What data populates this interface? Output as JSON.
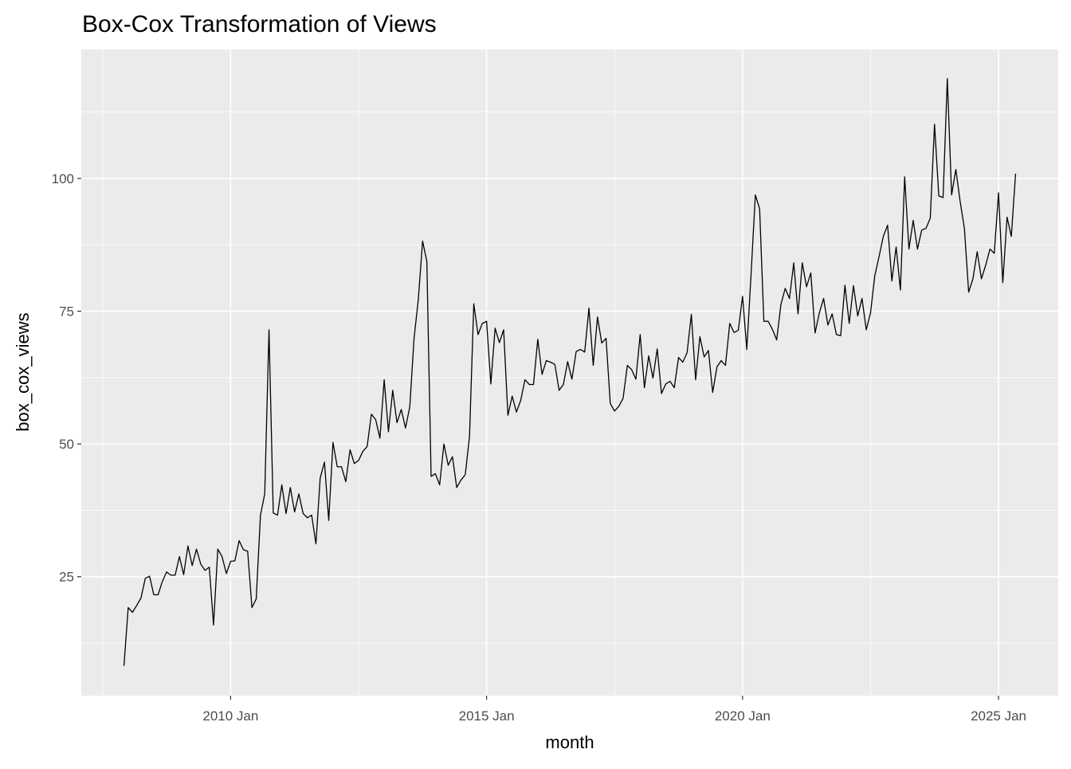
{
  "chart_data": {
    "type": "line",
    "title": "Box-Cox Transformation of Views",
    "xlabel": "month",
    "ylabel": "box_cox_views",
    "color": "#000000",
    "grid": true,
    "x": [
      "2007 Dec",
      "2008 Jan",
      "2008 Feb",
      "2008 Mar",
      "2008 Apr",
      "2008 May",
      "2008 Jun",
      "2008 Jul",
      "2008 Aug",
      "2008 Sep",
      "2008 Oct",
      "2008 Nov",
      "2008 Dec",
      "2009 Jan",
      "2009 Feb",
      "2009 Mar",
      "2009 Apr",
      "2009 May",
      "2009 Jun",
      "2009 Jul",
      "2009 Aug",
      "2009 Sep",
      "2009 Oct",
      "2009 Nov",
      "2009 Dec",
      "2010 Jan",
      "2010 Feb",
      "2010 Mar",
      "2010 Apr",
      "2010 May",
      "2010 Jun",
      "2010 Jul",
      "2010 Aug",
      "2010 Sep",
      "2010 Oct",
      "2010 Nov",
      "2010 Dec",
      "2011 Jan",
      "2011 Feb",
      "2011 Mar",
      "2011 Apr",
      "2011 May",
      "2011 Jun",
      "2011 Jul",
      "2011 Aug",
      "2011 Sep",
      "2011 Oct",
      "2011 Nov",
      "2011 Dec",
      "2012 Jan",
      "2012 Feb",
      "2012 Mar",
      "2012 Apr",
      "2012 May",
      "2012 Jun",
      "2012 Jul",
      "2012 Aug",
      "2012 Sep",
      "2012 Oct",
      "2012 Nov",
      "2012 Dec",
      "2013 Jan",
      "2013 Feb",
      "2013 Mar",
      "2013 Apr",
      "2013 May",
      "2013 Jun",
      "2013 Jul",
      "2013 Aug",
      "2013 Sep",
      "2013 Oct",
      "2013 Nov",
      "2013 Dec",
      "2014 Jan",
      "2014 Feb",
      "2014 Mar",
      "2014 Apr",
      "2014 May",
      "2014 Jun",
      "2014 Jul",
      "2014 Aug",
      "2014 Sep",
      "2014 Oct",
      "2014 Nov",
      "2014 Dec",
      "2015 Jan",
      "2015 Feb",
      "2015 Mar",
      "2015 Apr",
      "2015 May",
      "2015 Jun",
      "2015 Jul",
      "2015 Aug",
      "2015 Sep",
      "2015 Oct",
      "2015 Nov",
      "2015 Dec",
      "2016 Jan",
      "2016 Feb",
      "2016 Mar",
      "2016 Apr",
      "2016 May",
      "2016 Jun",
      "2016 Jul",
      "2016 Aug",
      "2016 Sep",
      "2016 Oct",
      "2016 Nov",
      "2016 Dec",
      "2017 Jan",
      "2017 Feb",
      "2017 Mar",
      "2017 Apr",
      "2017 May",
      "2017 Jun",
      "2017 Jul",
      "2017 Aug",
      "2017 Sep",
      "2017 Oct",
      "2017 Nov",
      "2017 Dec",
      "2018 Jan",
      "2018 Feb",
      "2018 Mar",
      "2018 Apr",
      "2018 May",
      "2018 Jun",
      "2018 Jul",
      "2018 Aug",
      "2018 Sep",
      "2018 Oct",
      "2018 Nov",
      "2018 Dec",
      "2019 Jan",
      "2019 Feb",
      "2019 Mar",
      "2019 Apr",
      "2019 May",
      "2019 Jun",
      "2019 Jul",
      "2019 Aug",
      "2019 Sep",
      "2019 Oct",
      "2019 Nov",
      "2019 Dec",
      "2020 Jan",
      "2020 Feb",
      "2020 Mar",
      "2020 Apr",
      "2020 May",
      "2020 Jun",
      "2020 Jul",
      "2020 Aug",
      "2020 Sep",
      "2020 Oct",
      "2020 Nov",
      "2020 Dec",
      "2021 Jan",
      "2021 Feb",
      "2021 Mar",
      "2021 Apr",
      "2021 May",
      "2021 Jun",
      "2021 Jul",
      "2021 Aug",
      "2021 Sep",
      "2021 Oct",
      "2021 Nov",
      "2021 Dec",
      "2022 Jan",
      "2022 Feb",
      "2022 Mar",
      "2022 Apr",
      "2022 May",
      "2022 Jun",
      "2022 Jul",
      "2022 Aug",
      "2022 Sep",
      "2022 Oct",
      "2022 Nov",
      "2022 Dec",
      "2023 Jan",
      "2023 Feb",
      "2023 Mar",
      "2023 Apr",
      "2023 May",
      "2023 Jun",
      "2023 Jul",
      "2023 Aug",
      "2023 Sep",
      "2023 Oct",
      "2023 Nov",
      "2023 Dec",
      "2024 Jan",
      "2024 Feb",
      "2024 Mar",
      "2024 Apr",
      "2024 May",
      "2024 Jun",
      "2024 Jul",
      "2024 Aug",
      "2024 Sep",
      "2024 Oct",
      "2024 Nov",
      "2024 Dec",
      "2025 Jan",
      "2025 Feb",
      "2025 Mar",
      "2025 Apr",
      "2025 May"
    ],
    "values": [
      8.2,
      19.2,
      18.3,
      19.6,
      21,
      24.7,
      25.1,
      21.6,
      21.6,
      24.1,
      25.9,
      25.3,
      25.3,
      28.8,
      25.4,
      30.8,
      27.1,
      30.2,
      27.4,
      26.2,
      26.8,
      15.9,
      30.2,
      28.8,
      25.6,
      27.9,
      28,
      31.8,
      30.1,
      29.8,
      19.2,
      20.8,
      36.6,
      40.6,
      71.5,
      37,
      36.6,
      42.3,
      36.9,
      41.8,
      37.2,
      40.6,
      36.9,
      36.1,
      36.6,
      31.2,
      43.6,
      46.6,
      35.6,
      50.3,
      45.7,
      45.7,
      42.9,
      48.9,
      46.3,
      46.9,
      48.6,
      49.5,
      55.6,
      54.6,
      51.1,
      62.1,
      52.3,
      60.1,
      54,
      56.5,
      53,
      57,
      69.9,
      77.2,
      88.2,
      84.4,
      43.9,
      44.4,
      42.3,
      50,
      46,
      47.6,
      41.8,
      43.2,
      44.2,
      51.4,
      76.4,
      70.6,
      72.7,
      73.1,
      61.3,
      71.8,
      69.1,
      71.5,
      55.4,
      59,
      56,
      58.2,
      62.1,
      61.2,
      61.2,
      69.7,
      63.1,
      65.7,
      65.4,
      65,
      60.1,
      61.2,
      65.5,
      62.2,
      67.4,
      67.8,
      67.3,
      75.6,
      64.8,
      73.9,
      69,
      69.9,
      57.6,
      56.2,
      57.1,
      58.6,
      64.8,
      64,
      62.2,
      70.6,
      60.6,
      66.6,
      62.4,
      67.9,
      59.5,
      61.3,
      61.8,
      60.6,
      66.3,
      65.4,
      67.2,
      74.4,
      62.1,
      70.2,
      66.4,
      67.6,
      59.7,
      64.5,
      65.7,
      64.8,
      72.7,
      71,
      71.4,
      77.8,
      67.8,
      82,
      96.9,
      94.3,
      73.1,
      73.1,
      71.6,
      69.6,
      76.3,
      79.3,
      77.4,
      84.1,
      74.5,
      84.1,
      79.6,
      82.2,
      70.9,
      74.7,
      77.4,
      72.4,
      74.5,
      70.6,
      70.4,
      79.9,
      72.7,
      79.8,
      74.1,
      77.4,
      71.5,
      74.7,
      81.7,
      85.3,
      89.1,
      91.2,
      80.7,
      87.1,
      79,
      100.3,
      86.7,
      92.1,
      86.7,
      90.3,
      90.6,
      92.5,
      110.2,
      96.7,
      96.4,
      118.8,
      96.9,
      101.7,
      95.7,
      90.6,
      78.6,
      81.1,
      86.2,
      81.1,
      83.7,
      86.7,
      85.9,
      97.3,
      80.4,
      92.7,
      89.1,
      100.9
    ],
    "xlim": [
      "2007 Feb",
      "2026 Mar"
    ],
    "xticks": [
      "2010 Jan",
      "2015 Jan",
      "2020 Jan",
      "2025 Jan"
    ],
    "ylim": [
      2.6,
      124.3
    ],
    "yticks": [
      25,
      50,
      75,
      100
    ]
  }
}
